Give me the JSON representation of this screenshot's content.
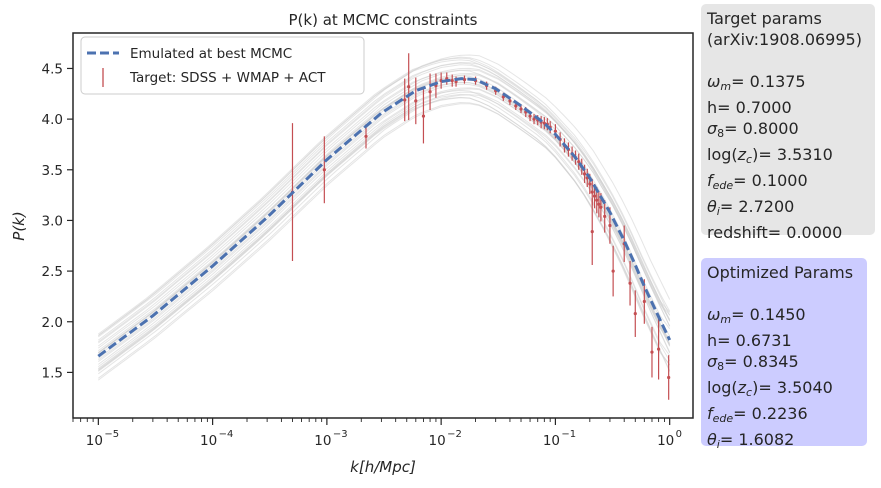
{
  "chart_data": {
    "type": "line",
    "title": "P(k) at MCMC constraints",
    "xlabel": "k[h/Mpc]",
    "ylabel": "P(k)",
    "xscale": "log",
    "xlim": [
      6e-06,
      1.6
    ],
    "ylim": [
      1.05,
      4.85
    ],
    "x_ticks": [
      1e-05,
      0.0001,
      0.001,
      0.01,
      0.1,
      1
    ],
    "x_tick_labels": [
      "10",
      "10",
      "10",
      "10",
      "10",
      "10"
    ],
    "x_tick_exponents": [
      "−5",
      "−4",
      "−3",
      "−2",
      "−1",
      "0"
    ],
    "y_ticks": [
      1.5,
      2.0,
      2.5,
      3.0,
      3.5,
      4.0,
      4.5
    ],
    "y_tick_labels": [
      "1.5",
      "2.0",
      "2.5",
      "3.0",
      "3.5",
      "4.0",
      "4.5"
    ],
    "grid": false,
    "legend_position": "top-left",
    "legend": [
      "Emulated at best MCMC",
      "Target: SDSS + WMAP + ACT"
    ],
    "colors": {
      "best": "#4c72b0",
      "target": "#c44e52",
      "samples": "#d0d0d0"
    },
    "best_fit": {
      "name": "Emulated at best MCMC",
      "x": [
        1e-05,
        3e-05,
        0.0001,
        0.0003,
        0.001,
        0.003,
        0.006,
        0.01,
        0.015,
        0.02,
        0.03,
        0.05,
        0.08,
        0.1,
        0.15,
        0.2,
        0.3,
        0.4,
        0.5,
        0.6,
        0.8,
        1.0
      ],
      "y": [
        1.66,
        2.06,
        2.55,
        3.03,
        3.6,
        4.06,
        4.28,
        4.37,
        4.4,
        4.39,
        4.3,
        4.13,
        3.96,
        3.85,
        3.62,
        3.42,
        3.08,
        2.8,
        2.56,
        2.35,
        2.05,
        1.82
      ]
    },
    "target": {
      "name": "Target: SDSS + WMAP + ACT",
      "points": [
        [
          0.0005,
          3.28,
          0.68
        ],
        [
          0.00095,
          3.5,
          0.33
        ],
        [
          0.0022,
          3.83,
          0.12
        ],
        [
          0.0048,
          4.19,
          0.21
        ],
        [
          0.0052,
          4.32,
          0.33
        ],
        [
          0.006,
          4.18,
          0.23
        ],
        [
          0.007,
          4.03,
          0.27
        ],
        [
          0.008,
          4.27,
          0.18
        ],
        [
          0.009,
          4.33,
          0.12
        ],
        [
          0.01,
          4.38,
          0.08
        ],
        [
          0.0112,
          4.4,
          0.06
        ],
        [
          0.0125,
          4.38,
          0.06
        ],
        [
          0.0135,
          4.37,
          0.05
        ],
        [
          0.016,
          4.39,
          0.04
        ],
        [
          0.02,
          4.38,
          0.04
        ],
        [
          0.025,
          4.33,
          0.04
        ],
        [
          0.03,
          4.28,
          0.04
        ],
        [
          0.035,
          4.22,
          0.04
        ],
        [
          0.04,
          4.18,
          0.04
        ],
        [
          0.045,
          4.13,
          0.04
        ],
        [
          0.05,
          4.1,
          0.04
        ],
        [
          0.055,
          4.07,
          0.05
        ],
        [
          0.06,
          4.03,
          0.05
        ],
        [
          0.065,
          4.0,
          0.05
        ],
        [
          0.07,
          3.99,
          0.05
        ],
        [
          0.075,
          3.97,
          0.06
        ],
        [
          0.08,
          3.96,
          0.06
        ],
        [
          0.085,
          3.95,
          0.06
        ],
        [
          0.09,
          3.92,
          0.06
        ],
        [
          0.1,
          3.88,
          0.07
        ],
        [
          0.11,
          3.8,
          0.07
        ],
        [
          0.12,
          3.74,
          0.07
        ],
        [
          0.13,
          3.7,
          0.07
        ],
        [
          0.14,
          3.66,
          0.07
        ],
        [
          0.15,
          3.62,
          0.07
        ],
        [
          0.16,
          3.58,
          0.08
        ],
        [
          0.17,
          3.53,
          0.08
        ],
        [
          0.18,
          3.46,
          0.09
        ],
        [
          0.19,
          3.42,
          0.09
        ],
        [
          0.2,
          3.36,
          0.1
        ],
        [
          0.21,
          3.28,
          0.13
        ],
        [
          0.22,
          3.24,
          0.12
        ],
        [
          0.23,
          3.2,
          0.13
        ],
        [
          0.24,
          3.16,
          0.13
        ],
        [
          0.25,
          3.13,
          0.14
        ],
        [
          0.27,
          3.04,
          0.16
        ],
        [
          0.3,
          2.95,
          0.18
        ],
        [
          0.32,
          2.5,
          0.25
        ],
        [
          0.21,
          2.89,
          0.33
        ],
        [
          0.4,
          2.77,
          0.18
        ],
        [
          0.45,
          2.38,
          0.22
        ],
        [
          0.5,
          2.08,
          0.23
        ],
        [
          0.6,
          2.2,
          0.22
        ],
        [
          0.7,
          1.7,
          0.25
        ],
        [
          0.8,
          1.73,
          0.3
        ],
        [
          0.98,
          1.45,
          0.22
        ]
      ]
    }
  },
  "target_panel": {
    "title_line1": "Target params",
    "title_line2": "(arXiv:1908.06995)",
    "omega_m": "= 0.1375",
    "h": "h= 0.7000",
    "sigma8": "= 0.8000",
    "log_zc": ")= 3.5310",
    "f_ede": "= 0.1000",
    "theta_i": "= 2.7200",
    "redshift": "redshift= 0.0000"
  },
  "optimized_panel": {
    "title": "Optimized Params",
    "omega_m": "= 0.1450",
    "h": "h= 0.6731",
    "sigma8": "= 0.8345",
    "log_zc": ")= 3.5040",
    "f_ede": "= 0.2236",
    "theta_i": "= 1.6082"
  }
}
